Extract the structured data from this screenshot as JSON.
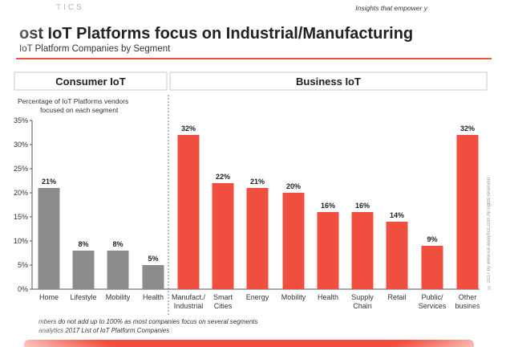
{
  "header": {
    "brand": "TICS",
    "tagline": "Insights that empower y",
    "title": "ost IoT Platforms focus on Industrial/Manufacturing",
    "subtitle": "IoT Platform Companies by Segment"
  },
  "footnotes": {
    "line1": "mbers do not add up to 100% as most companies focus on several segments",
    "line2": "analytics 2017 List of IoT Platform Companies"
  },
  "copyright": "© 2017 by www.iot-analytics.com All rights reserved",
  "colors": {
    "consumer_bar": "#8c8c8c",
    "business_bar": "#f04e3e",
    "accent": "#f04e3e"
  },
  "chart_data": {
    "type": "bar",
    "ylabel": "Percentage of IoT Platforms vendors focused on each segment",
    "ylim": [
      0,
      35
    ],
    "yticks": [
      "0%",
      "5%",
      "10%",
      "15%",
      "20%",
      "25%",
      "30%",
      "35%"
    ],
    "grid": false,
    "groups": [
      {
        "name": "Consumer IoT",
        "categories": [
          "Home",
          "Lifestyle",
          "Mobility",
          "Health"
        ],
        "values": [
          21,
          8,
          8,
          5
        ],
        "labels": [
          "21%",
          "8%",
          "8%",
          "5%"
        ]
      },
      {
        "name": "Business IoT",
        "categories": [
          "Manufact./ Industrial",
          "Smart Cities",
          "Energy",
          "Mobility",
          "Health",
          "Supply Chain",
          "Retail",
          "Public/ Services",
          "Other busines"
        ],
        "values": [
          32,
          22,
          21,
          20,
          16,
          16,
          14,
          9,
          32
        ],
        "labels": [
          "32%",
          "22%",
          "21%",
          "20%",
          "16%",
          "16%",
          "14%",
          "9%",
          "32%"
        ]
      }
    ]
  }
}
